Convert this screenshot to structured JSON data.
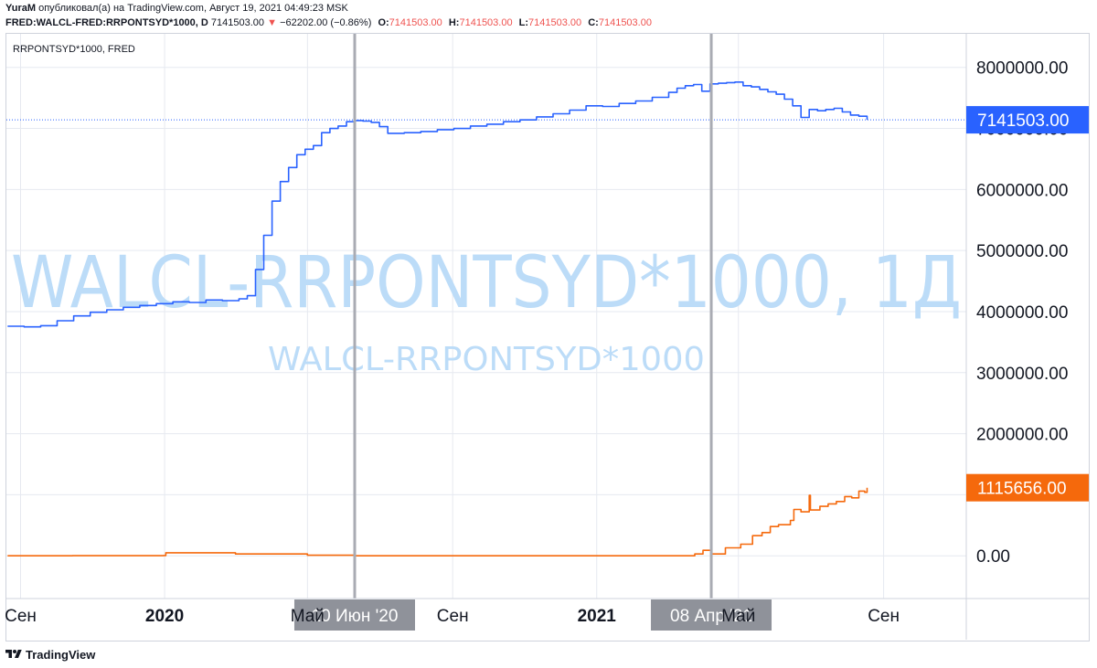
{
  "header": {
    "author": "YuraM",
    "published": "опубликовал(а) на TradingView.com, Август 19, 2021 04:49:23 MSK",
    "symbol": "FRED:WALCL-FRED:RRPONTSYD*1000, D",
    "last": "7141503.00",
    "change": "−62202.00 (−0.86%)",
    "o_label": "O:",
    "o_value": "7141503.00",
    "h_label": "H:",
    "h_value": "7141503.00",
    "l_label": "L:",
    "l_value": "7141503.00",
    "c_label": "C:",
    "c_value": "7141503.00",
    "arrow": "▼"
  },
  "footer": {
    "brand": "TradingView"
  },
  "colors": {
    "blue_line": "#2962ff",
    "orange_line": "#f5690c",
    "blue_badge": "#2962ff",
    "orange_badge": "#f5690c",
    "grid": "#e6e9f0",
    "watermark": "#bcdcf8",
    "vline": "#a9abb3",
    "time_badge": "#8f929a"
  },
  "chart_data": {
    "type": "line",
    "title": "RRPONTSYD*1000, FRED",
    "watermark_large": "WALCL-RRPONTSYD*1000, 1Д",
    "watermark_small": "WALCL-RRPONTSYD*1000",
    "x_range": [
      "2019-08-20",
      "2021-11-10"
    ],
    "ylim": [
      -700000,
      8550000
    ],
    "y_ticks": [
      "8000000.00",
      "7000000.00",
      "6000000.00",
      "5000000.00",
      "4000000.00",
      "3000000.00",
      "2000000.00",
      "1000000.00",
      "0.00"
    ],
    "y_tick_values": [
      8000000,
      7000000,
      6000000,
      5000000,
      4000000,
      3000000,
      2000000,
      1000000,
      0
    ],
    "x_ticks": [
      {
        "label": "Сен",
        "date": "2019-09-01",
        "bold": false
      },
      {
        "label": "2020",
        "date": "2020-01-01",
        "bold": true
      },
      {
        "label": "Май",
        "date": "2020-05-01",
        "bold": false
      },
      {
        "label": "Сен",
        "date": "2020-09-01",
        "bold": false
      },
      {
        "label": "2021",
        "date": "2021-01-01",
        "bold": true
      },
      {
        "label": "Май",
        "date": "2021-05-01",
        "bold": false
      },
      {
        "label": "Сен",
        "date": "2021-09-01",
        "bold": false
      }
    ],
    "vertical_markers": [
      {
        "date": "2020-06-10",
        "label": "10 Июн '20"
      },
      {
        "date": "2021-04-08",
        "label": "08 Апр '21"
      }
    ],
    "last_values": [
      {
        "series": "WALCL-RRPONTSYD*1000",
        "label": "7141503.00",
        "value": 7141503
      },
      {
        "series": "RRPONTSYD*1000",
        "label": "1115656.00",
        "value": 1115656
      }
    ],
    "series": [
      {
        "name": "WALCL-RRPONTSYD*1000",
        "color": "#2962ff",
        "points": [
          [
            "2019-08-21",
            3760000
          ],
          [
            "2019-09-04",
            3750000
          ],
          [
            "2019-09-18",
            3770000
          ],
          [
            "2019-10-02",
            3850000
          ],
          [
            "2019-10-16",
            3930000
          ],
          [
            "2019-10-30",
            3990000
          ],
          [
            "2019-11-13",
            4030000
          ],
          [
            "2019-11-27",
            4070000
          ],
          [
            "2019-12-11",
            4100000
          ],
          [
            "2019-12-25",
            4130000
          ],
          [
            "2020-01-08",
            4160000
          ],
          [
            "2020-01-22",
            4150000
          ],
          [
            "2020-02-05",
            4190000
          ],
          [
            "2020-02-19",
            4180000
          ],
          [
            "2020-03-04",
            4210000
          ],
          [
            "2020-03-11",
            4260000
          ],
          [
            "2020-03-18",
            4690000
          ],
          [
            "2020-03-25",
            5250000
          ],
          [
            "2020-04-01",
            5810000
          ],
          [
            "2020-04-08",
            6130000
          ],
          [
            "2020-04-15",
            6360000
          ],
          [
            "2020-04-22",
            6570000
          ],
          [
            "2020-04-29",
            6660000
          ],
          [
            "2020-05-06",
            6720000
          ],
          [
            "2020-05-13",
            6930000
          ],
          [
            "2020-05-20",
            7000000
          ],
          [
            "2020-05-27",
            7040000
          ],
          [
            "2020-06-03",
            7110000
          ],
          [
            "2020-06-10",
            7130000
          ],
          [
            "2020-06-17",
            7120000
          ],
          [
            "2020-06-24",
            7100000
          ],
          [
            "2020-07-01",
            7030000
          ],
          [
            "2020-07-08",
            6920000
          ],
          [
            "2020-07-22",
            6930000
          ],
          [
            "2020-08-05",
            6950000
          ],
          [
            "2020-08-19",
            6980000
          ],
          [
            "2020-09-02",
            7000000
          ],
          [
            "2020-09-16",
            7040000
          ],
          [
            "2020-09-30",
            7070000
          ],
          [
            "2020-10-14",
            7110000
          ],
          [
            "2020-10-28",
            7140000
          ],
          [
            "2020-11-11",
            7190000
          ],
          [
            "2020-11-25",
            7240000
          ],
          [
            "2020-12-09",
            7300000
          ],
          [
            "2020-12-23",
            7370000
          ],
          [
            "2021-01-06",
            7360000
          ],
          [
            "2021-01-20",
            7410000
          ],
          [
            "2021-02-03",
            7450000
          ],
          [
            "2021-02-17",
            7510000
          ],
          [
            "2021-03-03",
            7590000
          ],
          [
            "2021-03-10",
            7660000
          ],
          [
            "2021-03-17",
            7700000
          ],
          [
            "2021-03-24",
            7720000
          ],
          [
            "2021-03-31",
            7610000
          ],
          [
            "2021-04-07",
            7730000
          ],
          [
            "2021-04-14",
            7740000
          ],
          [
            "2021-04-21",
            7750000
          ],
          [
            "2021-04-28",
            7760000
          ],
          [
            "2021-05-05",
            7700000
          ],
          [
            "2021-05-12",
            7680000
          ],
          [
            "2021-05-19",
            7640000
          ],
          [
            "2021-05-26",
            7600000
          ],
          [
            "2021-06-02",
            7560000
          ],
          [
            "2021-06-09",
            7480000
          ],
          [
            "2021-06-16",
            7370000
          ],
          [
            "2021-06-23",
            7180000
          ],
          [
            "2021-06-30",
            7310000
          ],
          [
            "2021-07-07",
            7290000
          ],
          [
            "2021-07-14",
            7310000
          ],
          [
            "2021-07-21",
            7330000
          ],
          [
            "2021-07-28",
            7270000
          ],
          [
            "2021-08-04",
            7220000
          ],
          [
            "2021-08-11",
            7200000
          ],
          [
            "2021-08-18",
            7141503
          ]
        ]
      },
      {
        "name": "RRPONTSYD*1000",
        "color": "#f5690c",
        "points": [
          [
            "2019-08-21",
            0
          ],
          [
            "2019-10-15",
            2000
          ],
          [
            "2019-12-31",
            5000
          ],
          [
            "2020-01-02",
            50000
          ],
          [
            "2020-03-01",
            30000
          ],
          [
            "2020-05-01",
            10000
          ],
          [
            "2020-06-10",
            0
          ],
          [
            "2020-09-01",
            0
          ],
          [
            "2020-12-31",
            0
          ],
          [
            "2021-03-01",
            0
          ],
          [
            "2021-03-25",
            30000
          ],
          [
            "2021-04-01",
            90000
          ],
          [
            "2021-04-08",
            30000
          ],
          [
            "2021-04-20",
            130000
          ],
          [
            "2021-05-03",
            190000
          ],
          [
            "2021-05-13",
            330000
          ],
          [
            "2021-05-21",
            380000
          ],
          [
            "2021-05-28",
            480000
          ],
          [
            "2021-06-04",
            510000
          ],
          [
            "2021-06-14",
            580000
          ],
          [
            "2021-06-17",
            760000
          ],
          [
            "2021-06-23",
            720000
          ],
          [
            "2021-06-30",
            990000
          ],
          [
            "2021-07-01",
            750000
          ],
          [
            "2021-07-09",
            810000
          ],
          [
            "2021-07-16",
            850000
          ],
          [
            "2021-07-23",
            890000
          ],
          [
            "2021-07-30",
            970000
          ],
          [
            "2021-08-05",
            950000
          ],
          [
            "2021-08-11",
            1060000
          ],
          [
            "2021-08-16",
            1040000
          ],
          [
            "2021-08-18",
            1115656
          ]
        ]
      }
    ]
  }
}
